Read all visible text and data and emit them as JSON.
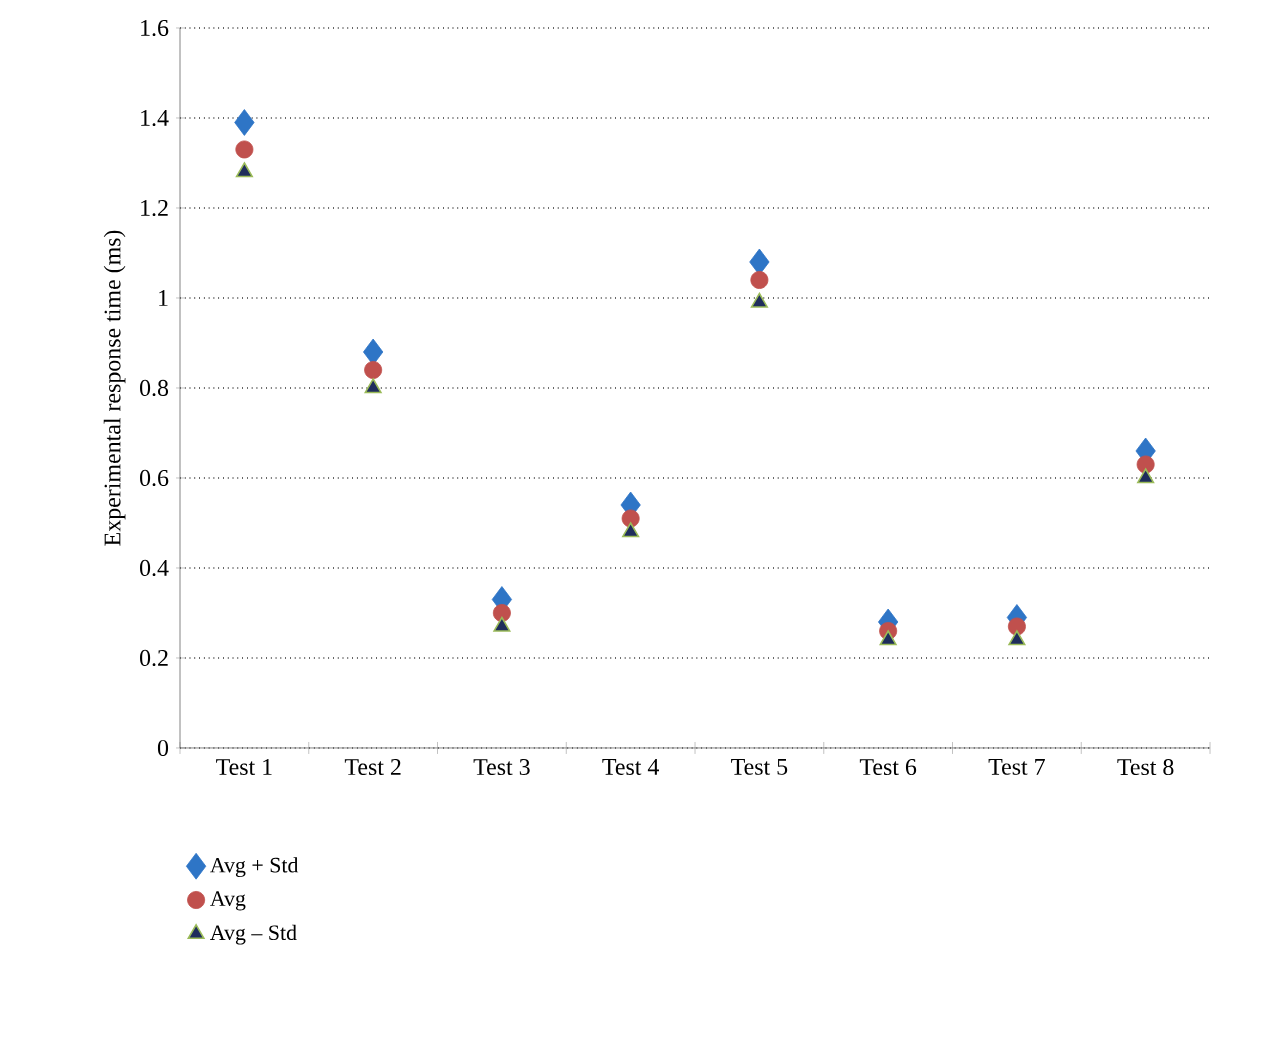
{
  "chart_data": {
    "type": "scatter",
    "ylabel": "Experimental response time (ms)",
    "categories": [
      "Test 1",
      "Test 2",
      "Test 3",
      "Test 4",
      "Test 5",
      "Test 6",
      "Test 7",
      "Test 8"
    ],
    "series": [
      {
        "name": "Avg + Std",
        "color": "#2e75c6",
        "marker": "diamond",
        "values": [
          1.39,
          0.88,
          0.33,
          0.54,
          1.08,
          0.28,
          0.29,
          0.66
        ]
      },
      {
        "name": "Avg",
        "color": "#c0504d",
        "marker": "circle",
        "values": [
          1.33,
          0.84,
          0.3,
          0.51,
          1.04,
          0.26,
          0.27,
          0.63
        ]
      },
      {
        "name": "Avg – Std",
        "color": "#1f2d5c",
        "marker": "triangle",
        "values": [
          1.28,
          0.8,
          0.27,
          0.48,
          0.99,
          0.24,
          0.24,
          0.6
        ]
      }
    ],
    "ylim": [
      0,
      1.6
    ],
    "yticks": [
      0,
      0.2,
      0.4,
      0.6,
      0.8,
      1,
      1.2,
      1.4,
      1.6
    ],
    "grid": "y",
    "legend": "bottom left"
  }
}
